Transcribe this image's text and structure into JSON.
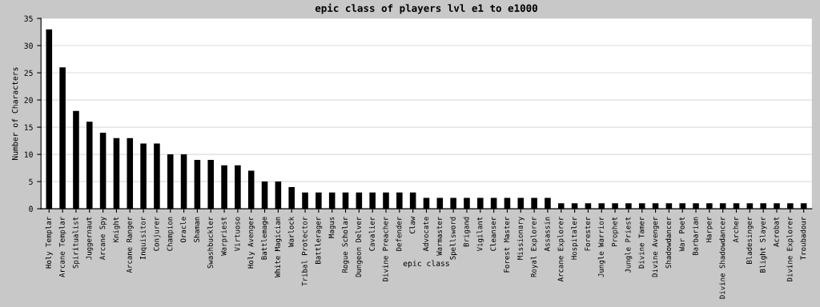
{
  "chart_data": {
    "type": "bar",
    "title": "epic class of players lvl e1 to e1000",
    "xlabel": "epic class",
    "ylabel": "Number of Characters",
    "categories": [
      "Holy Templar",
      "Arcane Templar",
      "Spiritualist",
      "Juggernaut",
      "Arcane Spy",
      "Knight",
      "Arcane Ranger",
      "Inquisitor",
      "Conjurer",
      "Champion",
      "Oracle",
      "Shaman",
      "Swashbuckler",
      "Warpriest",
      "Virtuoso",
      "Holy Avenger",
      "Battlemage",
      "White Magician",
      "Warlock",
      "Tribal Protector",
      "Battlerager",
      "Magus",
      "Rogue Scholar",
      "Dungeon Delver",
      "Cavalier",
      "Divine Preacher",
      "Defender",
      "Claw",
      "Advocate",
      "Warmaster",
      "Spellsword",
      "Brigand",
      "Vigilant",
      "Cleanser",
      "Forest Master",
      "Missionary",
      "Royal Explorer",
      "Assassin",
      "Arcane Explorer",
      "Hospitaler",
      "Forester",
      "Jungle Warrior",
      "Prophet",
      "Jungle Priest",
      "Divine Tamer",
      "Divine Avenger",
      "Shadowdancer",
      "War Poet",
      "Barbarian",
      "Harper",
      "Divine Shadowdancer",
      "Archer",
      "Bladesinger",
      "Blight Slayer",
      "Acrobat",
      "Divine Explorer",
      "Troubadour"
    ],
    "values": [
      33,
      26,
      18,
      16,
      14,
      13,
      13,
      12,
      12,
      10,
      10,
      9,
      9,
      8,
      8,
      7,
      5,
      5,
      4,
      3,
      3,
      3,
      3,
      3,
      3,
      3,
      3,
      3,
      2,
      2,
      2,
      2,
      2,
      2,
      2,
      2,
      2,
      2,
      1,
      1,
      1,
      1,
      1,
      1,
      1,
      1,
      1,
      1,
      1,
      1,
      1,
      1,
      1,
      1,
      1,
      1,
      1
    ],
    "color": "#000000",
    "ylim": [
      0,
      35
    ],
    "yticks": [
      0,
      5,
      10,
      15,
      20,
      25,
      30,
      35
    ],
    "grid": "y"
  }
}
